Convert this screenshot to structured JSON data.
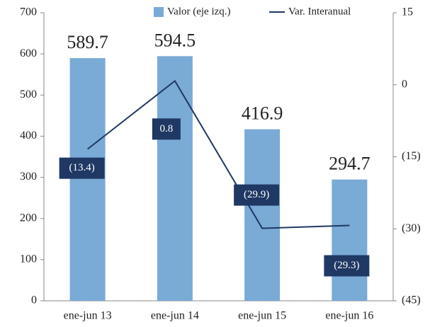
{
  "chart_data": {
    "type": "bar_line",
    "categories": [
      "ene-jun 13",
      "ene-jun 14",
      "ene-jun 15",
      "ene-jun 16"
    ],
    "series": [
      {
        "name": "Valor (eje izq.)",
        "color": "#7aaad6",
        "type": "bar",
        "values": [
          589.7,
          594.5,
          416.9,
          294.7
        ]
      },
      {
        "name": "Var. Interanual",
        "color": "#1f3864",
        "type": "line",
        "axis": "y2",
        "values": [
          -13.4,
          0.8,
          -29.9,
          -29.3
        ],
        "value_labels": [
          "(13.4)",
          "0.8",
          "(29.9)",
          "(29.3)"
        ]
      }
    ],
    "ylim": [
      0,
      700
    ],
    "yticks": [
      0,
      100,
      200,
      300,
      400,
      500,
      600,
      700
    ],
    "y2lim": [
      -45,
      15
    ],
    "y2ticks": [
      15,
      0,
      {
        "value": -15,
        "label": "(15)"
      },
      {
        "value": -30,
        "label": "(30)"
      },
      {
        "value": -45,
        "label": "(45)"
      }
    ],
    "legend": "top-right"
  }
}
